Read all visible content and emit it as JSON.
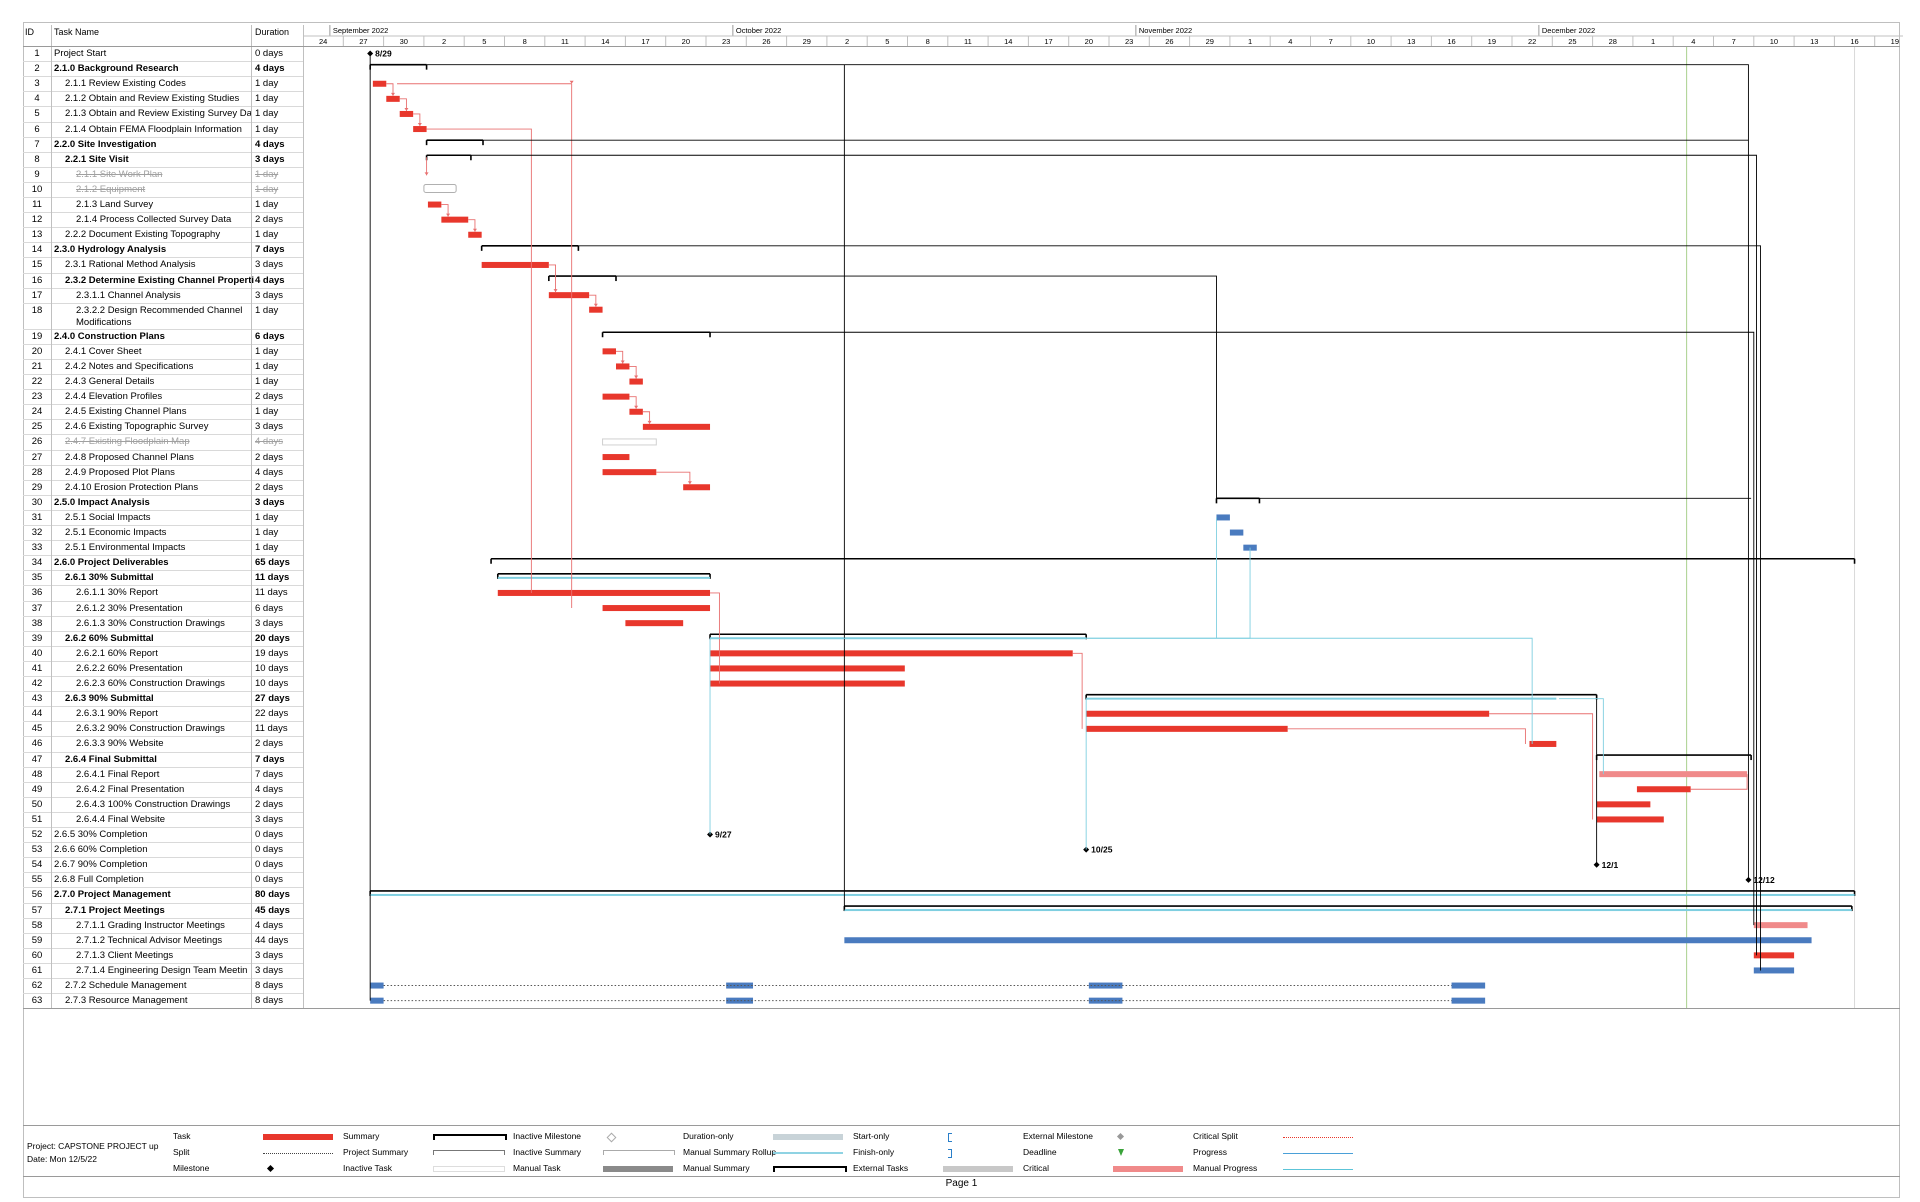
{
  "header": {
    "id": "ID",
    "task_name": "Task Name",
    "duration": "Duration"
  },
  "months": [
    {
      "label": "September 2022",
      "tick": 1
    },
    {
      "label": "October 2022",
      "tick": 11
    },
    {
      "label": "November 2022",
      "tick": 21
    },
    {
      "label": "December 2022",
      "tick": 31
    }
  ],
  "ticks": [
    "24",
    "27",
    "30",
    "2",
    "5",
    "8",
    "11",
    "14",
    "17",
    "20",
    "23",
    "26",
    "29",
    "2",
    "5",
    "8",
    "11",
    "14",
    "17",
    "20",
    "23",
    "26",
    "29",
    "1",
    "4",
    "7",
    "10",
    "13",
    "16",
    "19",
    "22",
    "25",
    "28",
    "1",
    "4",
    "7",
    "10",
    "13",
    "16",
    "19"
  ],
  "tasks": [
    {
      "id": "1",
      "name": "Project Start",
      "dur": "0 days",
      "lvl": 0
    },
    {
      "id": "2",
      "name": "2.1.0 Background Research",
      "dur": "4 days",
      "lvl": 0,
      "bold": true
    },
    {
      "id": "3",
      "name": "2.1.1 Review Existing Codes",
      "dur": "1 day",
      "lvl": 1
    },
    {
      "id": "4",
      "name": "2.1.2 Obtain and Review Existing Studies",
      "dur": "1 day",
      "lvl": 1
    },
    {
      "id": "5",
      "name": "2.1.3 Obtain and Review Existing Survey Da",
      "dur": "1 day",
      "lvl": 1
    },
    {
      "id": "6",
      "name": "2.1.4 Obtain FEMA Floodplain Information",
      "dur": "1 day",
      "lvl": 1
    },
    {
      "id": "7",
      "name": "2.2.0 Site Investigation",
      "dur": "4 days",
      "lvl": 0,
      "bold": true
    },
    {
      "id": "8",
      "name": "2.2.1 Site Visit",
      "dur": "3 days",
      "lvl": 1,
      "bold": true
    },
    {
      "id": "9",
      "name": "2.1.1 Site Work Plan",
      "dur": "1 day",
      "lvl": 2,
      "inactive": true
    },
    {
      "id": "10",
      "name": "2.1.2 Equipment",
      "dur": "1 day",
      "lvl": 2,
      "inactive": true
    },
    {
      "id": "11",
      "name": "2.1.3 Land Survey",
      "dur": "1 day",
      "lvl": 2
    },
    {
      "id": "12",
      "name": "2.1.4 Process Collected Survey Data",
      "dur": "2 days",
      "lvl": 2
    },
    {
      "id": "13",
      "name": "2.2.2 Document Existing Topography",
      "dur": "1 day",
      "lvl": 1
    },
    {
      "id": "14",
      "name": "2.3.0 Hydrology Analysis",
      "dur": "7 days",
      "lvl": 0,
      "bold": true
    },
    {
      "id": "15",
      "name": "2.3.1 Rational Method Analysis",
      "dur": "3 days",
      "lvl": 1
    },
    {
      "id": "16",
      "name": "2.3.2 Determine Existing Channel Properti",
      "dur": "4 days",
      "lvl": 1,
      "bold": true
    },
    {
      "id": "17",
      "name": "2.3.1.1 Channel Analysis",
      "dur": "3 days",
      "lvl": 2
    },
    {
      "id": "18",
      "name": "2.3.2.2 Design Recommended Channel Modifications",
      "dur": "1 day",
      "lvl": 2,
      "tall": true
    },
    {
      "id": "19",
      "name": "2.4.0 Construction Plans",
      "dur": "6 days",
      "lvl": 0,
      "bold": true
    },
    {
      "id": "20",
      "name": "2.4.1 Cover Sheet",
      "dur": "1 day",
      "lvl": 1
    },
    {
      "id": "21",
      "name": "2.4.2 Notes and Specifications",
      "dur": "1 day",
      "lvl": 1
    },
    {
      "id": "22",
      "name": "2.4.3 General Details",
      "dur": "1 day",
      "lvl": 1
    },
    {
      "id": "23",
      "name": "2.4.4 Elevation Profiles",
      "dur": "2 days",
      "lvl": 1
    },
    {
      "id": "24",
      "name": "2.4.5 Existing Channel Plans",
      "dur": "1 day",
      "lvl": 1
    },
    {
      "id": "25",
      "name": "2.4.6 Existing Topographic Survey",
      "dur": "3 days",
      "lvl": 1
    },
    {
      "id": "26",
      "name": "2.4.7 Existing Floodplain Map",
      "dur": "4 days",
      "lvl": 1,
      "inactive": true
    },
    {
      "id": "27",
      "name": "2.4.8 Proposed Channel Plans",
      "dur": "2 days",
      "lvl": 1
    },
    {
      "id": "28",
      "name": "2.4.9 Proposed Plot Plans",
      "dur": "4 days",
      "lvl": 1
    },
    {
      "id": "29",
      "name": "2.4.10 Erosion Protection Plans",
      "dur": "2 days",
      "lvl": 1
    },
    {
      "id": "30",
      "name": "2.5.0 Impact Analysis",
      "dur": "3 days",
      "lvl": 0,
      "bold": true
    },
    {
      "id": "31",
      "name": "2.5.1 Social Impacts",
      "dur": "1 day",
      "lvl": 1
    },
    {
      "id": "32",
      "name": "2.5.1 Economic Impacts",
      "dur": "1 day",
      "lvl": 1
    },
    {
      "id": "33",
      "name": "2.5.1 Environmental Impacts",
      "dur": "1 day",
      "lvl": 1
    },
    {
      "id": "34",
      "name": "2.6.0 Project Deliverables",
      "dur": "65 days",
      "lvl": 0,
      "bold": true
    },
    {
      "id": "35",
      "name": "2.6.1 30% Submittal",
      "dur": "11 days",
      "lvl": 1,
      "bold": true
    },
    {
      "id": "36",
      "name": "2.6.1.1 30% Report",
      "dur": "11 days",
      "lvl": 2
    },
    {
      "id": "37",
      "name": "2.6.1.2 30% Presentation",
      "dur": "6 days",
      "lvl": 2
    },
    {
      "id": "38",
      "name": "2.6.1.3 30% Construction Drawings",
      "dur": "3 days",
      "lvl": 2
    },
    {
      "id": "39",
      "name": "2.6.2 60% Submittal",
      "dur": "20 days",
      "lvl": 1,
      "bold": true
    },
    {
      "id": "40",
      "name": "2.6.2.1 60% Report",
      "dur": "19 days",
      "lvl": 2
    },
    {
      "id": "41",
      "name": "2.6.2.2 60% Presentation",
      "dur": "10 days",
      "lvl": 2
    },
    {
      "id": "42",
      "name": "2.6.2.3 60% Construction Drawings",
      "dur": "10 days",
      "lvl": 2
    },
    {
      "id": "43",
      "name": "2.6.3 90% Submittal",
      "dur": "27 days",
      "lvl": 1,
      "bold": true
    },
    {
      "id": "44",
      "name": "2.6.3.1 90% Report",
      "dur": "22 days",
      "lvl": 2
    },
    {
      "id": "45",
      "name": "2.6.3.2 90% Construction Drawings",
      "dur": "11 days",
      "lvl": 2
    },
    {
      "id": "46",
      "name": "2.6.3.3 90% Website",
      "dur": "2 days",
      "lvl": 2
    },
    {
      "id": "47",
      "name": "2.6.4 Final Submittal",
      "dur": "7 days",
      "lvl": 1,
      "bold": true
    },
    {
      "id": "48",
      "name": "2.6.4.1 Final Report",
      "dur": "7 days",
      "lvl": 2
    },
    {
      "id": "49",
      "name": "2.6.4.2 Final Presentation",
      "dur": "4 days",
      "lvl": 2
    },
    {
      "id": "50",
      "name": "2.6.4.3 100% Construction Drawings",
      "dur": "2 days",
      "lvl": 2
    },
    {
      "id": "51",
      "name": "2.6.4.4 Final Website",
      "dur": "3 days",
      "lvl": 2
    },
    {
      "id": "52",
      "name": "2.6.5 30% Completion",
      "dur": "0 days",
      "lvl": 0
    },
    {
      "id": "53",
      "name": "2.6.6 60% Completion",
      "dur": "0 days",
      "lvl": 0
    },
    {
      "id": "54",
      "name": "2.6.7 90% Completion",
      "dur": "0 days",
      "lvl": 0
    },
    {
      "id": "55",
      "name": "2.6.8 Full Completion",
      "dur": "0 days",
      "lvl": 0
    },
    {
      "id": "56",
      "name": "2.7.0 Project Management",
      "dur": "80 days",
      "lvl": 0,
      "bold": true
    },
    {
      "id": "57",
      "name": "2.7.1 Project Meetings",
      "dur": "45 days",
      "lvl": 1,
      "bold": true
    },
    {
      "id": "58",
      "name": "2.7.1.1 Grading Instructor Meetings",
      "dur": "4 days",
      "lvl": 2
    },
    {
      "id": "59",
      "name": "2.7.1.2 Technical Advisor Meetings",
      "dur": "44 days",
      "lvl": 2
    },
    {
      "id": "60",
      "name": "2.7.1.3 Client Meetings",
      "dur": "3 days",
      "lvl": 2
    },
    {
      "id": "61",
      "name": "2.7.1.4 Engineering Design Team Meetin",
      "dur": "3 days",
      "lvl": 2
    },
    {
      "id": "62",
      "name": "2.7.2 Schedule Management",
      "dur": "8 days",
      "lvl": 1
    },
    {
      "id": "63",
      "name": "2.7.3 Resource Management",
      "dur": "8 days",
      "lvl": 1
    }
  ],
  "milestone_labels": {
    "m1": "8/29",
    "m52": "9/27",
    "m53": "10/25",
    "m54": "12/1",
    "m55": "12/12"
  },
  "project_info": {
    "project": "Project: CAPSTONE PROJECT up",
    "date": "Date: Mon 12/5/22"
  },
  "legend": [
    {
      "label": "Task",
      "kind": "task"
    },
    {
      "label": "Split",
      "kind": "split"
    },
    {
      "label": "Milestone",
      "kind": "milestone"
    },
    {
      "label": "Summary",
      "kind": "summary"
    },
    {
      "label": "Project Summary",
      "kind": "projsummary"
    },
    {
      "label": "Inactive Task",
      "kind": "inactivetask"
    },
    {
      "label": "Inactive Milestone",
      "kind": "inactivemilestone"
    },
    {
      "label": "Inactive Summary",
      "kind": "inactivesummary"
    },
    {
      "label": "Manual Task",
      "kind": "manualtask"
    },
    {
      "label": "Duration-only",
      "kind": "durationonly"
    },
    {
      "label": "Manual Summary Rollup",
      "kind": "manualrollup"
    },
    {
      "label": "Manual Summary",
      "kind": "manualsummary"
    },
    {
      "label": "Start-only",
      "kind": "startonly"
    },
    {
      "label": "Finish-only",
      "kind": "finishonly"
    },
    {
      "label": "External Tasks",
      "kind": "external"
    },
    {
      "label": "External Milestone",
      "kind": "extmilestone"
    },
    {
      "label": "Deadline",
      "kind": "deadline"
    },
    {
      "label": "Critical",
      "kind": "critical"
    },
    {
      "label": "Critical Split",
      "kind": "criticalsplit"
    },
    {
      "label": "Progress",
      "kind": "progress"
    },
    {
      "label": "Manual Progress",
      "kind": "manualprogress"
    }
  ],
  "footer": {
    "page": "Page 1"
  },
  "colors": {
    "critical": "#e8372c",
    "noncritical": "#4a7bbf",
    "summary": "#000000",
    "link": "#e87070",
    "blue_link": "#7fcfe0"
  }
}
